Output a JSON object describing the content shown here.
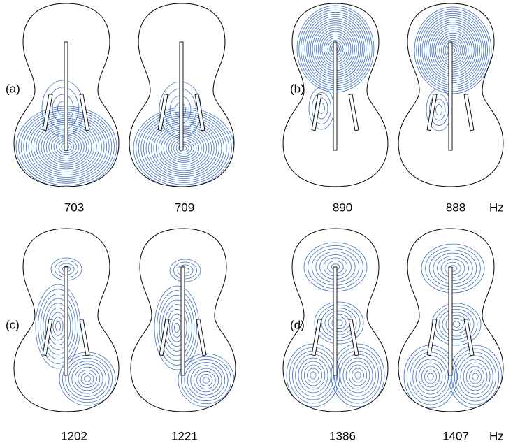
{
  "panels": [
    {
      "label": "(a)",
      "frequencies": [
        703,
        709
      ]
    },
    {
      "label": "(b)",
      "frequencies": [
        890,
        888
      ],
      "unit": "Hz"
    },
    {
      "label": "(c)",
      "frequencies": [
        1202,
        1221
      ]
    },
    {
      "label": "(d)",
      "frequencies": [
        1386,
        1407
      ],
      "unit": "Hz"
    }
  ]
}
